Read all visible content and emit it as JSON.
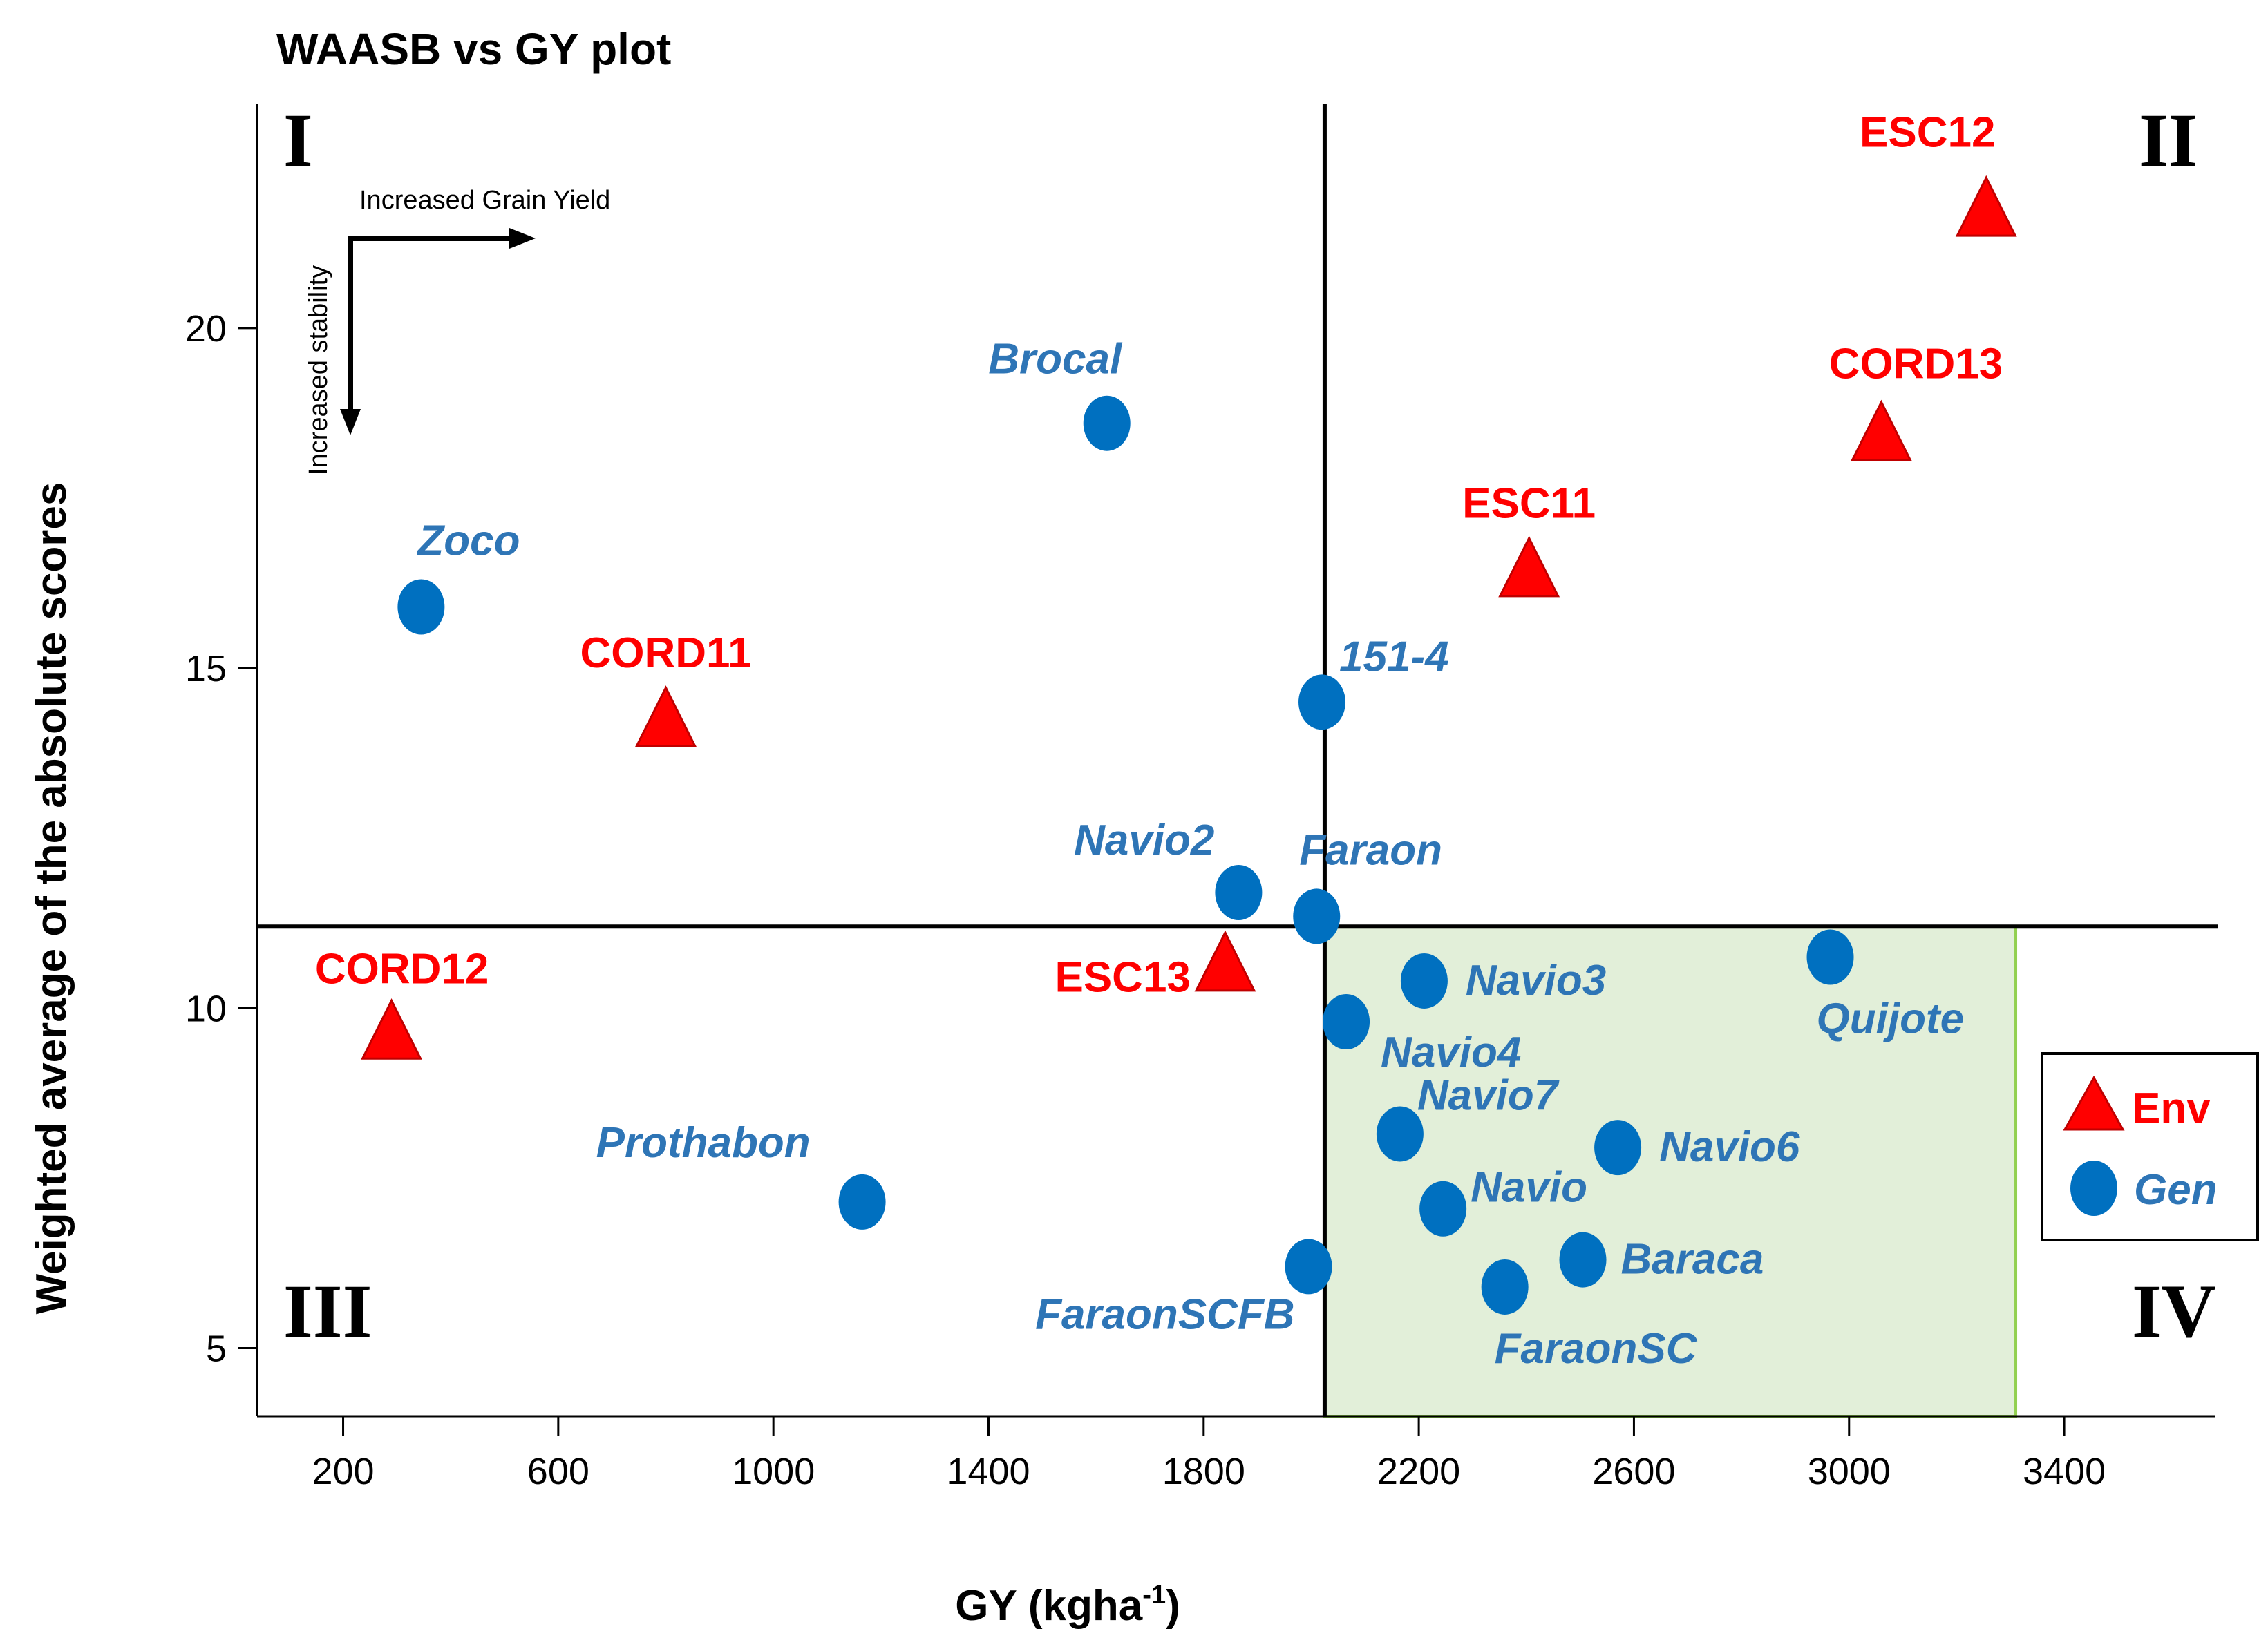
{
  "chart_data": {
    "type": "scatter",
    "title": "WAASB vs GY plot",
    "xlabel_main": "GY (kgha",
    "xlabel_sup": "-1",
    "xlabel_close": ")",
    "ylabel": "Weighted average of the absolute scores",
    "xlim": [
      40,
      3680
    ],
    "ylim": [
      4,
      23.3
    ],
    "x_ticks": [
      200,
      600,
      1000,
      1400,
      1800,
      2200,
      2600,
      3000,
      3400
    ],
    "y_ticks": [
      5,
      10,
      15,
      20
    ],
    "mean_gy": 2025,
    "mean_waasb": 11.2,
    "highlight_region": {
      "x": [
        2025,
        3310
      ],
      "y": [
        4,
        11.2
      ]
    },
    "quadrant_labels": [
      "I",
      "II",
      "III",
      "IV"
    ],
    "annotations": {
      "x_arrow_label": "Increased Grain Yield",
      "y_arrow_label": "Increased stability"
    },
    "legend": {
      "env": "Env",
      "gen": "Gen"
    },
    "series": [
      {
        "name": "Gen",
        "marker": "circle",
        "color": "#0070C0",
        "label_color": "#2E75B6",
        "points": [
          {
            "label": "Brocal",
            "x": 1620,
            "y": 18.6
          },
          {
            "label": "Zoco",
            "x": 345,
            "y": 15.9
          },
          {
            "label": "151-4",
            "x": 2020,
            "y": 14.5
          },
          {
            "label": "Navio2",
            "x": 1865,
            "y": 11.7
          },
          {
            "label": "Faraon",
            "x": 2010,
            "y": 11.35
          },
          {
            "label": "Navio3",
            "x": 2210,
            "y": 10.4
          },
          {
            "label": "Navio4",
            "x": 2065,
            "y": 9.8
          },
          {
            "label": "Quijote",
            "x": 2965,
            "y": 10.75
          },
          {
            "label": "Navio7",
            "x": 2165,
            "y": 8.15
          },
          {
            "label": "Navio6",
            "x": 2570,
            "y": 7.95
          },
          {
            "label": "Navio",
            "x": 2245,
            "y": 7.05
          },
          {
            "label": "Prothabon",
            "x": 1165,
            "y": 7.15
          },
          {
            "label": "Baraca",
            "x": 2505,
            "y": 6.3
          },
          {
            "label": "FaraonSCFB",
            "x": 1995,
            "y": 6.2
          },
          {
            "label": "FaraonSC",
            "x": 2360,
            "y": 5.9
          }
        ]
      },
      {
        "name": "Env",
        "marker": "triangle",
        "color": "#FF0000",
        "label_color": "#FF0000",
        "points": [
          {
            "label": "ESC12",
            "x": 3255,
            "y": 21.7
          },
          {
            "label": "CORD13",
            "x": 3060,
            "y": 18.4
          },
          {
            "label": "ESC11",
            "x": 2405,
            "y": 16.4
          },
          {
            "label": "CORD11",
            "x": 800,
            "y": 14.2
          },
          {
            "label": "ESC13",
            "x": 1840,
            "y": 10.6
          },
          {
            "label": "CORD12",
            "x": 290,
            "y": 9.6
          }
        ]
      }
    ]
  }
}
